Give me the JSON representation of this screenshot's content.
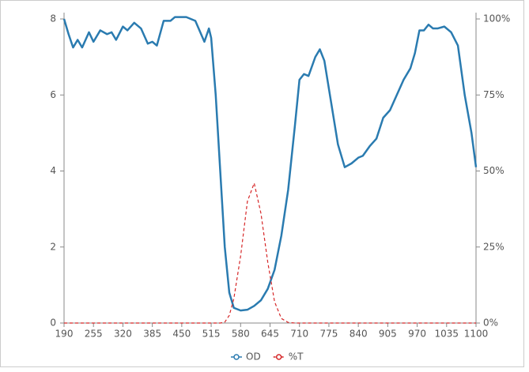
{
  "chart_data": {
    "type": "line",
    "x": [
      190,
      200,
      210,
      220,
      230,
      245,
      255,
      270,
      285,
      295,
      305,
      320,
      330,
      345,
      360,
      375,
      385,
      395,
      410,
      425,
      435,
      460,
      480,
      500,
      510,
      515,
      525,
      535,
      545,
      555,
      565,
      580,
      595,
      610,
      625,
      640,
      655,
      670,
      685,
      700,
      710,
      720,
      730,
      745,
      755,
      765,
      780,
      795,
      810,
      825,
      840,
      850,
      865,
      880,
      895,
      910,
      925,
      940,
      955,
      965,
      975,
      985,
      995,
      1005,
      1015,
      1030,
      1045,
      1060,
      1075,
      1090,
      1100
    ],
    "series": [
      {
        "name": "OD",
        "color": "#2a7bb0",
        "values": [
          8.0,
          7.6,
          7.25,
          7.45,
          7.25,
          7.65,
          7.4,
          7.7,
          7.6,
          7.65,
          7.45,
          7.8,
          7.7,
          7.9,
          7.75,
          7.35,
          7.4,
          7.3,
          7.95,
          7.95,
          8.05,
          8.05,
          7.95,
          7.4,
          7.75,
          7.5,
          6.0,
          4.0,
          2.0,
          0.8,
          0.4,
          0.33,
          0.35,
          0.45,
          0.6,
          0.9,
          1.4,
          2.3,
          3.5,
          5.2,
          6.4,
          6.55,
          6.5,
          7.0,
          7.2,
          6.9,
          5.8,
          4.7,
          4.1,
          4.2,
          4.35,
          4.4,
          4.65,
          4.85,
          5.4,
          5.6,
          6.0,
          6.4,
          6.7,
          7.1,
          7.7,
          7.7,
          7.85,
          7.75,
          7.75,
          7.8,
          7.65,
          7.3,
          6.0,
          5.0,
          4.1
        ]
      },
      {
        "name": "%T",
        "color": "#d62728",
        "axis": "y2",
        "dashed": true,
        "values": [
          0,
          0,
          0,
          0,
          0,
          0,
          0,
          0,
          0,
          0,
          0,
          0,
          0,
          0,
          0,
          0,
          0,
          0,
          0,
          0,
          0,
          0,
          0,
          0,
          0,
          0,
          0,
          0,
          0.3,
          2.5,
          8,
          22,
          40,
          46,
          36,
          20,
          7,
          1.5,
          0.2,
          0,
          0,
          0,
          0,
          0,
          0,
          0,
          0,
          0,
          0,
          0,
          0,
          0,
          0,
          0,
          0,
          0,
          0,
          0,
          0,
          0,
          0,
          0,
          0,
          0,
          0,
          0,
          0,
          0,
          0,
          0,
          0
        ]
      }
    ],
    "xlim": [
      190,
      1100
    ],
    "xticks": [
      190,
      255,
      320,
      385,
      450,
      515,
      580,
      645,
      710,
      775,
      840,
      905,
      970,
      1035,
      1100
    ],
    "ylim": [
      0,
      8
    ],
    "yticks": [
      0,
      2,
      4,
      6,
      8
    ],
    "y2lim": [
      0,
      100
    ],
    "y2ticks": [
      {
        "value": 0,
        "label": "0%"
      },
      {
        "value": 25,
        "label": "25%"
      },
      {
        "value": 50,
        "label": "50%"
      },
      {
        "value": 75,
        "label": "75%"
      },
      {
        "value": 100,
        "label": "100%"
      }
    ],
    "legend": "bottom"
  }
}
